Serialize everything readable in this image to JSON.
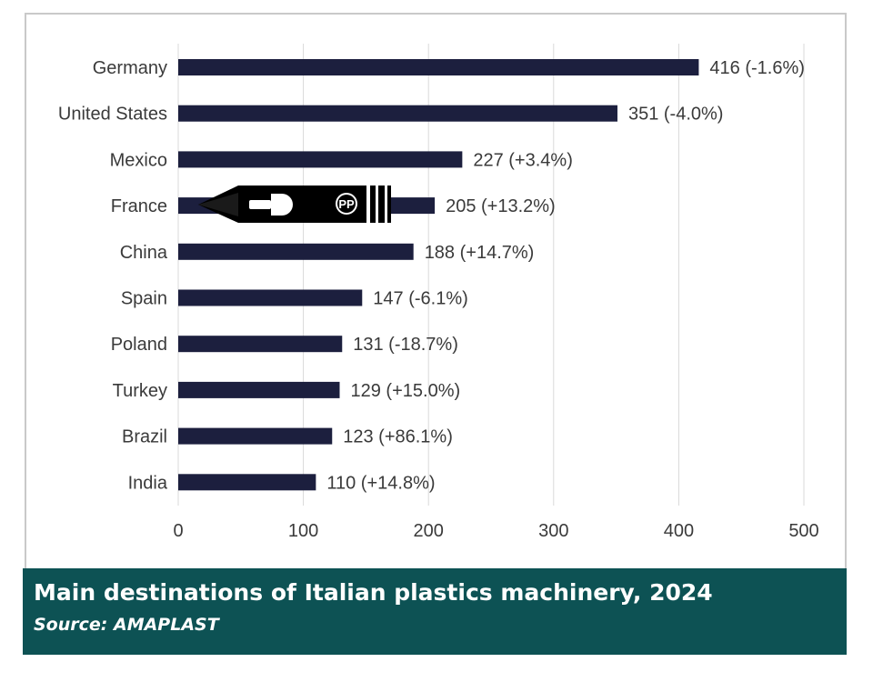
{
  "caption": {
    "title": "Main destinations of Italian plastics machinery, 2024",
    "source": "Source: AMAPLAST"
  },
  "colors": {
    "bar": "#1c1f3e",
    "grid": "#d9d9d9",
    "caption_bg": "#0d5254",
    "text": "#3a3a3a"
  },
  "chart_data": {
    "type": "bar",
    "orientation": "horizontal",
    "title": "Main destinations of Italian plastics machinery, 2024",
    "categories": [
      "Germany",
      "United States",
      "Mexico",
      "France",
      "China",
      "Spain",
      "Poland",
      "Turkey",
      "Brazil",
      "India"
    ],
    "values": [
      416,
      351,
      227,
      205,
      188,
      147,
      131,
      129,
      123,
      110
    ],
    "data_labels": [
      "416 (-1.6%)",
      "351 (-4.0%)",
      "227 (+3.4%)",
      "205 (+13.2%)",
      "188 (+14.7%)",
      "147 (-6.1%)",
      "131 (-18.7%)",
      "129 (+15.0%)",
      "123 (+86.1%)",
      "110 (+14.8%)"
    ],
    "xlim": [
      0,
      500
    ],
    "xticks": [
      0,
      100,
      200,
      300,
      400,
      500
    ],
    "grid": "vertical",
    "legend": "none"
  }
}
